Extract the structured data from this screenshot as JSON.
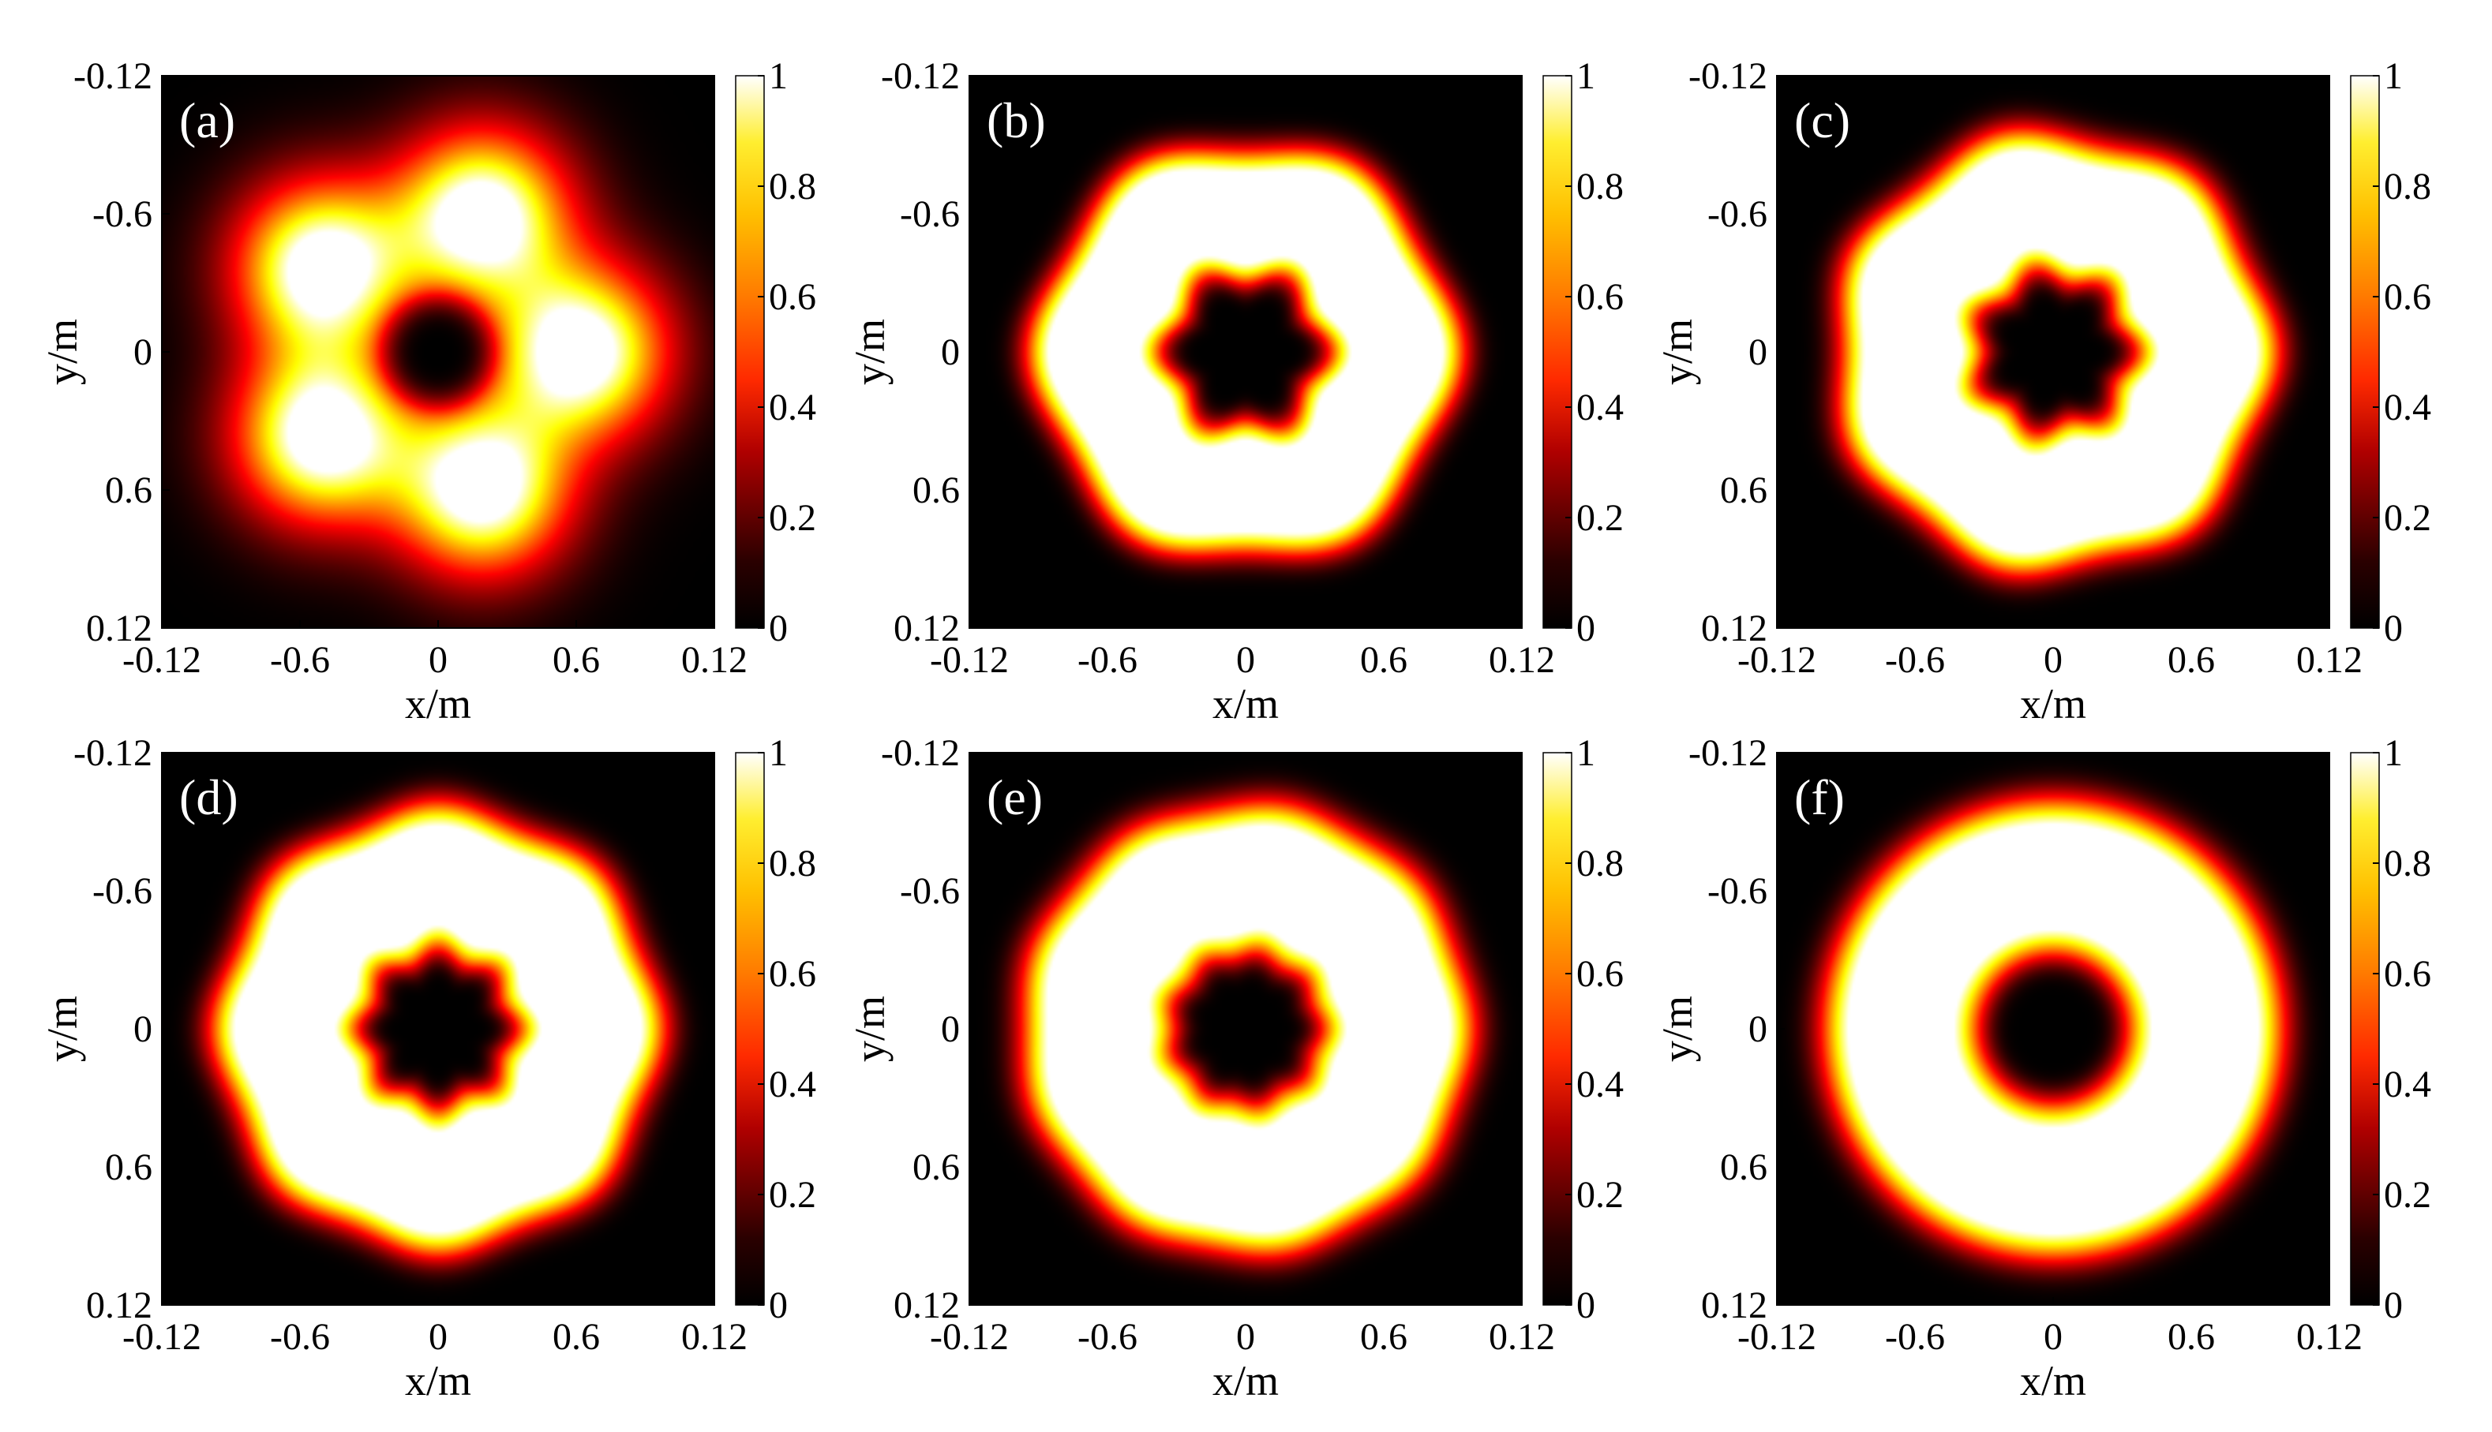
{
  "chart_data": [
    {
      "type": "heatmap",
      "panel_label": "(a)",
      "pattern": {
        "kind": "lobes",
        "count": 5,
        "ring_radius_ticks": 0.62,
        "lobe_width": 0.26,
        "center_hole_radius": 0.24
      },
      "xlabel": "x/m",
      "ylabel": "y/m",
      "xticks": [
        "-0.12",
        "-0.6",
        "0",
        "0.6",
        "0.12"
      ],
      "yticks": [
        "-0.12",
        "-0.6",
        "0",
        "0.6",
        "0.12"
      ],
      "colorbar": {
        "min": 0,
        "max": 1,
        "ticks": [
          "0",
          "0.2",
          "0.4",
          "0.6",
          "0.8",
          "1"
        ]
      }
    },
    {
      "type": "heatmap",
      "panel_label": "(b)",
      "pattern": {
        "kind": "ring",
        "count": 6,
        "ring_radius_ticks": 0.62,
        "ring_width": 0.3,
        "modulation": 0.06,
        "spot_count": 12,
        "center_hole_radius": 0.24
      },
      "xlabel": "x/m",
      "ylabel": "y/m",
      "xticks": [
        "-0.12",
        "-0.6",
        "0",
        "0.6",
        "0.12"
      ],
      "yticks": [
        "-0.12",
        "-0.6",
        "0",
        "0.6",
        "0.12"
      ],
      "colorbar": {
        "min": 0,
        "max": 1,
        "ticks": [
          "0",
          "0.2",
          "0.4",
          "0.6",
          "0.8",
          "1"
        ]
      }
    },
    {
      "type": "heatmap",
      "panel_label": "(c)",
      "pattern": {
        "kind": "ring",
        "count": 7,
        "ring_radius_ticks": 0.64,
        "ring_width": 0.32,
        "modulation": 0.05,
        "spot_count": 14,
        "center_hole_radius": 0.24
      },
      "xlabel": "x/m",
      "ylabel": "y/m",
      "xticks": [
        "-0.12",
        "-0.6",
        "0",
        "0.6",
        "0.12"
      ],
      "yticks": [
        "-0.12",
        "-0.6",
        "0",
        "0.6",
        "0.12"
      ],
      "colorbar": {
        "min": 0,
        "max": 1,
        "ticks": [
          "0",
          "0.2",
          "0.4",
          "0.6",
          "0.8",
          "1"
        ]
      }
    },
    {
      "type": "heatmap",
      "panel_label": "(d)",
      "pattern": {
        "kind": "ring",
        "count": 8,
        "ring_radius_ticks": 0.64,
        "ring_width": 0.33,
        "modulation": 0.04,
        "spot_count": 10,
        "center_hole_radius": 0.24
      },
      "xlabel": "x/m",
      "ylabel": "y/m",
      "xticks": [
        "-0.12",
        "-0.6",
        "0",
        "0.6",
        "0.12"
      ],
      "yticks": [
        "-0.12",
        "-0.6",
        "0",
        "0.6",
        "0.12"
      ],
      "colorbar": {
        "min": 0,
        "max": 1,
        "ticks": [
          "0",
          "0.2",
          "0.4",
          "0.6",
          "0.8",
          "1"
        ]
      }
    },
    {
      "type": "heatmap",
      "panel_label": "(e)",
      "pattern": {
        "kind": "ring",
        "count": 9,
        "ring_radius_ticks": 0.65,
        "ring_width": 0.34,
        "modulation": 0.02,
        "spot_count": 12,
        "center_hole_radius": 0.24
      },
      "xlabel": "x/m",
      "ylabel": "y/m",
      "xticks": [
        "-0.12",
        "-0.6",
        "0",
        "0.6",
        "0.12"
      ],
      "yticks": [
        "-0.12",
        "-0.6",
        "0",
        "0.6",
        "0.12"
      ],
      "colorbar": {
        "min": 0,
        "max": 1,
        "ticks": [
          "0",
          "0.2",
          "0.4",
          "0.6",
          "0.8",
          "1"
        ]
      }
    },
    {
      "type": "heatmap",
      "panel_label": "(f)",
      "pattern": {
        "kind": "ring",
        "count": 10,
        "ring_radius_ticks": 0.66,
        "ring_width": 0.35,
        "modulation": 0.0,
        "spot_count": 12,
        "center_hole_radius": 0.24
      },
      "xlabel": "x/m",
      "ylabel": "y/m",
      "xticks": [
        "-0.12",
        "-0.6",
        "0",
        "0.6",
        "0.12"
      ],
      "yticks": [
        "-0.12",
        "-0.6",
        "0",
        "0.6",
        "0.12"
      ],
      "colorbar": {
        "min": 0,
        "max": 1,
        "ticks": [
          "0",
          "0.2",
          "0.4",
          "0.6",
          "0.8",
          "1"
        ]
      }
    }
  ]
}
